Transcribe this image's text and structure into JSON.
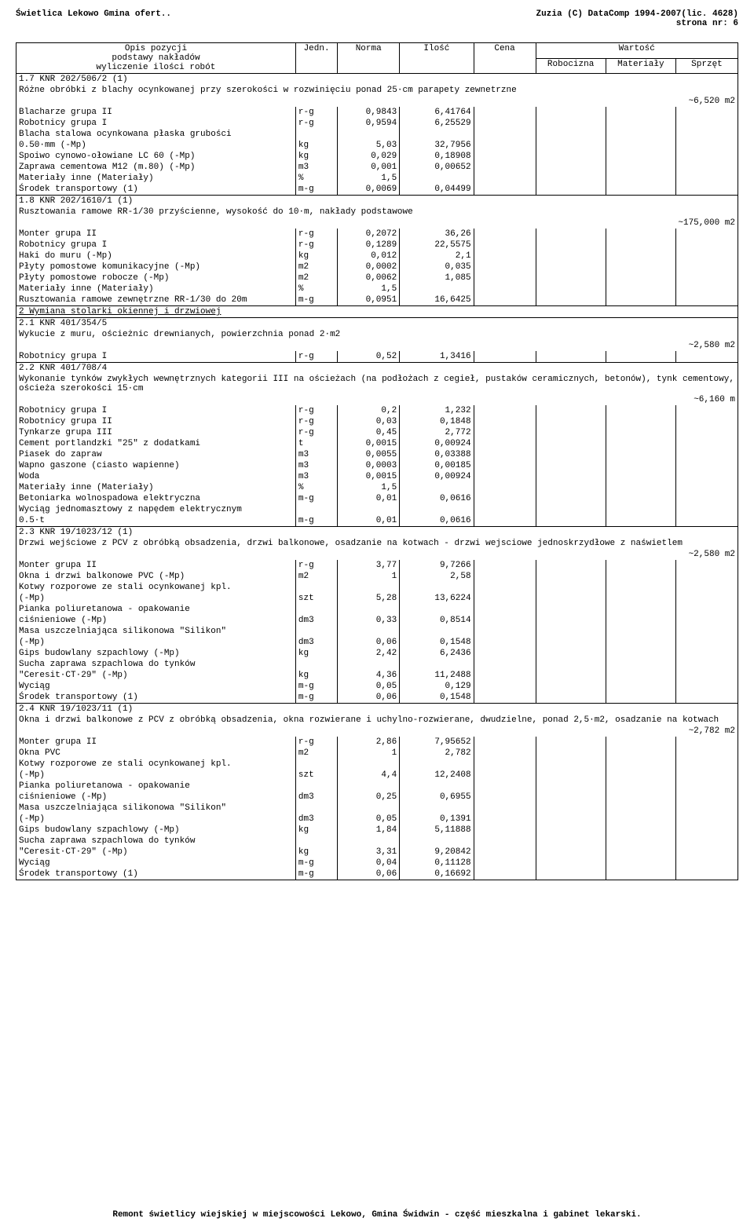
{
  "header": {
    "left": "Świetlica Lekowo Gmina ofert..",
    "right1": "Zuzia (C) DataComp 1994-2007(lic. 4628)",
    "right2": "strona nr:      6"
  },
  "tableHeader": {
    "opis1": "Opis pozycji",
    "opis2": "podstawy nakładów",
    "opis3": "wyliczenie ilości robót",
    "jedn": "Jedn.",
    "norma": "Norma",
    "ilosc": "Ilość",
    "cena": "Cena",
    "wartosc": "Wartość",
    "rob": "Robocizna",
    "mat": "Materiały",
    "spr": "Sprzęt"
  },
  "sections": [
    {
      "title": "1.7 KNR 202/506/2 (1)",
      "desc": "Różne obróbki z blachy ocynkowanej przy szerokości w rozwinięciu ponad 25·cm parapety zewnetrzne",
      "qty": "~6,520 m2",
      "rows": [
        {
          "opis": "Blacharze grupa II",
          "jedn": "r-g",
          "norma": "0,9843",
          "ilosc": "6,41764"
        },
        {
          "opis": "Robotnicy grupa I",
          "jedn": "r-g",
          "norma": "0,9594",
          "ilosc": "6,25529"
        },
        {
          "opis": "Blacha stalowa ocynkowana płaska grubości",
          "jedn": "",
          "norma": "",
          "ilosc": ""
        },
        {
          "opis": "0.50·mm (-Mp)",
          "jedn": "kg",
          "norma": "5,03",
          "ilosc": "32,7956"
        },
        {
          "opis": "Spoiwo cynowo-ołowiane LC 60 (-Mp)",
          "jedn": "kg",
          "norma": "0,029",
          "ilosc": "0,18908"
        },
        {
          "opis": "Zaprawa cementowa M12 (m.80) (-Mp)",
          "jedn": "m3",
          "norma": "0,001",
          "ilosc": "0,00652"
        },
        {
          "opis": "Materiały inne (Materiały)",
          "jedn": "%",
          "norma": "1,5",
          "ilosc": ""
        },
        {
          "opis": "Środek transportowy (1)",
          "jedn": "m-g",
          "norma": "0,0069",
          "ilosc": "0,04499"
        }
      ]
    },
    {
      "title": "1.8 KNR 202/1610/1 (1)",
      "desc": "Rusztowania ramowe RR-1/30 przyścienne, wysokość do 10·m, nakłady podstawowe",
      "qty": "~175,000 m2",
      "rows": [
        {
          "opis": "Monter grupa II",
          "jedn": "r-g",
          "norma": "0,2072",
          "ilosc": "36,26"
        },
        {
          "opis": "Robotnicy grupa I",
          "jedn": "r-g",
          "norma": "0,1289",
          "ilosc": "22,5575"
        },
        {
          "opis": "Haki do muru (-Mp)",
          "jedn": "kg",
          "norma": "0,012",
          "ilosc": "2,1"
        },
        {
          "opis": "Płyty pomostowe komunikacyjne (-Mp)",
          "jedn": "m2",
          "norma": "0,0002",
          "ilosc": "0,035"
        },
        {
          "opis": "Płyty pomostowe robocze (-Mp)",
          "jedn": "m2",
          "norma": "0,0062",
          "ilosc": "1,085"
        },
        {
          "opis": "Materiały inne (Materiały)",
          "jedn": "%",
          "norma": "1,5",
          "ilosc": ""
        },
        {
          "opis": "Rusztowania ramowe zewnętrzne RR-1/30 do 20m",
          "jedn": "m-g",
          "norma": "0,0951",
          "ilosc": "16,6425"
        }
      ]
    },
    {
      "title": "2 Wymiana stolarki okiennej i drzwiowej",
      "underline": true,
      "desc": "",
      "qty": "",
      "rows": []
    },
    {
      "title": "2.1 KNR 401/354/5",
      "desc": "Wykucie z muru, ościeżnic drewnianych, powierzchnia ponad 2·m2",
      "qty": "~2,580 m2",
      "rows": [
        {
          "opis": "Robotnicy grupa I",
          "jedn": "r-g",
          "norma": "0,52",
          "ilosc": "1,3416"
        }
      ]
    },
    {
      "title": "2.2 KNR 401/708/4",
      "desc": "Wykonanie tynków zwykłych wewnętrznych kategorii III na ościeżach (na podłożach z cegieł, pustaków ceramicznych, betonów), tynk cementowy, ościeża szerokości 15·cm",
      "qty": "~6,160 m",
      "rows": [
        {
          "opis": "Robotnicy grupa I",
          "jedn": "r-g",
          "norma": "0,2",
          "ilosc": "1,232"
        },
        {
          "opis": "Robotnicy grupa II",
          "jedn": "r-g",
          "norma": "0,03",
          "ilosc": "0,1848"
        },
        {
          "opis": "Tynkarze grupa III",
          "jedn": "r-g",
          "norma": "0,45",
          "ilosc": "2,772"
        },
        {
          "opis": "Cement portlandzki \"25\" z dodatkami",
          "jedn": "t",
          "norma": "0,0015",
          "ilosc": "0,00924"
        },
        {
          "opis": "Piasek do zapraw",
          "jedn": "m3",
          "norma": "0,0055",
          "ilosc": "0,03388"
        },
        {
          "opis": "Wapno gaszone (ciasto wapienne)",
          "jedn": "m3",
          "norma": "0,0003",
          "ilosc": "0,00185"
        },
        {
          "opis": "Woda",
          "jedn": "m3",
          "norma": "0,0015",
          "ilosc": "0,00924"
        },
        {
          "opis": "Materiały inne (Materiały)",
          "jedn": "%",
          "norma": "1,5",
          "ilosc": ""
        },
        {
          "opis": "Betoniarka wolnospadowa elektryczna",
          "jedn": "m-g",
          "norma": "0,01",
          "ilosc": "0,0616"
        },
        {
          "opis": "Wyciąg jednomasztowy z napędem elektrycznym",
          "jedn": "",
          "norma": "",
          "ilosc": ""
        },
        {
          "opis": "0.5·t",
          "jedn": "m-g",
          "norma": "0,01",
          "ilosc": "0,0616"
        }
      ]
    },
    {
      "title": "2.3 KNR 19/1023/12 (1)",
      "desc": "Drzwi wejściowe z PCV z obróbką obsadzenia, drzwi balkonowe, osadzanie na kotwach - drzwi wejsciowe jednoskrzydłowe z naświetlem",
      "qty": "~2,580 m2",
      "rows": [
        {
          "opis": "Monter grupa II",
          "jedn": "r-g",
          "norma": "3,77",
          "ilosc": "9,7266"
        },
        {
          "opis": "Okna i drzwi balkonowe PVC (-Mp)",
          "jedn": "m2",
          "norma": "1",
          "ilosc": "2,58"
        },
        {
          "opis": "Kotwy rozporowe ze stali ocynkowanej kpl.",
          "jedn": "",
          "norma": "",
          "ilosc": ""
        },
        {
          "opis": "(-Mp)",
          "jedn": "szt",
          "norma": "5,28",
          "ilosc": "13,6224"
        },
        {
          "opis": "Pianka poliuretanowa - opakowanie",
          "jedn": "",
          "norma": "",
          "ilosc": ""
        },
        {
          "opis": "ciśnieniowe (-Mp)",
          "jedn": "dm3",
          "norma": "0,33",
          "ilosc": "0,8514"
        },
        {
          "opis": "Masa uszczelniająca silikonowa \"Silikon\"",
          "jedn": "",
          "norma": "",
          "ilosc": ""
        },
        {
          "opis": "(-Mp)",
          "jedn": "dm3",
          "norma": "0,06",
          "ilosc": "0,1548"
        },
        {
          "opis": "Gips budowlany szpachlowy (-Mp)",
          "jedn": "kg",
          "norma": "2,42",
          "ilosc": "6,2436"
        },
        {
          "opis": "Sucha zaprawa szpachlowa do tynków",
          "jedn": "",
          "norma": "",
          "ilosc": ""
        },
        {
          "opis": "\"Ceresit·CT·29\" (-Mp)",
          "jedn": "kg",
          "norma": "4,36",
          "ilosc": "11,2488"
        },
        {
          "opis": "Wyciąg",
          "jedn": "m-g",
          "norma": "0,05",
          "ilosc": "0,129"
        },
        {
          "opis": "Środek transportowy (1)",
          "jedn": "m-g",
          "norma": "0,06",
          "ilosc": "0,1548"
        }
      ]
    },
    {
      "title": "2.4 KNR 19/1023/11 (1)",
      "desc": "Okna i drzwi balkonowe z PCV z obróbką obsadzenia, okna rozwierane i uchylno-rozwierane, dwudzielne, ponad 2,5·m2, osadzanie na kotwach",
      "qty": "~2,782 m2",
      "rows": [
        {
          "opis": "Monter grupa II",
          "jedn": "r-g",
          "norma": "2,86",
          "ilosc": "7,95652"
        },
        {
          "opis": "Okna  PVC",
          "jedn": "m2",
          "norma": "1",
          "ilosc": "2,782"
        },
        {
          "opis": "Kotwy rozporowe ze stali ocynkowanej kpl.",
          "jedn": "",
          "norma": "",
          "ilosc": ""
        },
        {
          "opis": "(-Mp)",
          "jedn": "szt",
          "norma": "4,4",
          "ilosc": "12,2408"
        },
        {
          "opis": "Pianka poliuretanowa - opakowanie",
          "jedn": "",
          "norma": "",
          "ilosc": ""
        },
        {
          "opis": "ciśnieniowe (-Mp)",
          "jedn": "dm3",
          "norma": "0,25",
          "ilosc": "0,6955"
        },
        {
          "opis": "Masa uszczelniająca silikonowa \"Silikon\"",
          "jedn": "",
          "norma": "",
          "ilosc": ""
        },
        {
          "opis": "(-Mp)",
          "jedn": "dm3",
          "norma": "0,05",
          "ilosc": "0,1391"
        },
        {
          "opis": "Gips budowlany szpachlowy (-Mp)",
          "jedn": "kg",
          "norma": "1,84",
          "ilosc": "5,11888"
        },
        {
          "opis": "Sucha zaprawa szpachlowa do tynków",
          "jedn": "",
          "norma": "",
          "ilosc": ""
        },
        {
          "opis": "\"Ceresit·CT·29\" (-Mp)",
          "jedn": "kg",
          "norma": "3,31",
          "ilosc": "9,20842"
        },
        {
          "opis": "Wyciąg",
          "jedn": "m-g",
          "norma": "0,04",
          "ilosc": "0,11128"
        },
        {
          "opis": "Środek transportowy (1)",
          "jedn": "m-g",
          "norma": "0,06",
          "ilosc": "0,16692"
        }
      ]
    }
  ],
  "footer": "Remont świetlicy wiejskiej w miejscowości Lekowo, Gmina Świdwin - część mieszkalna i gabinet lekarski."
}
